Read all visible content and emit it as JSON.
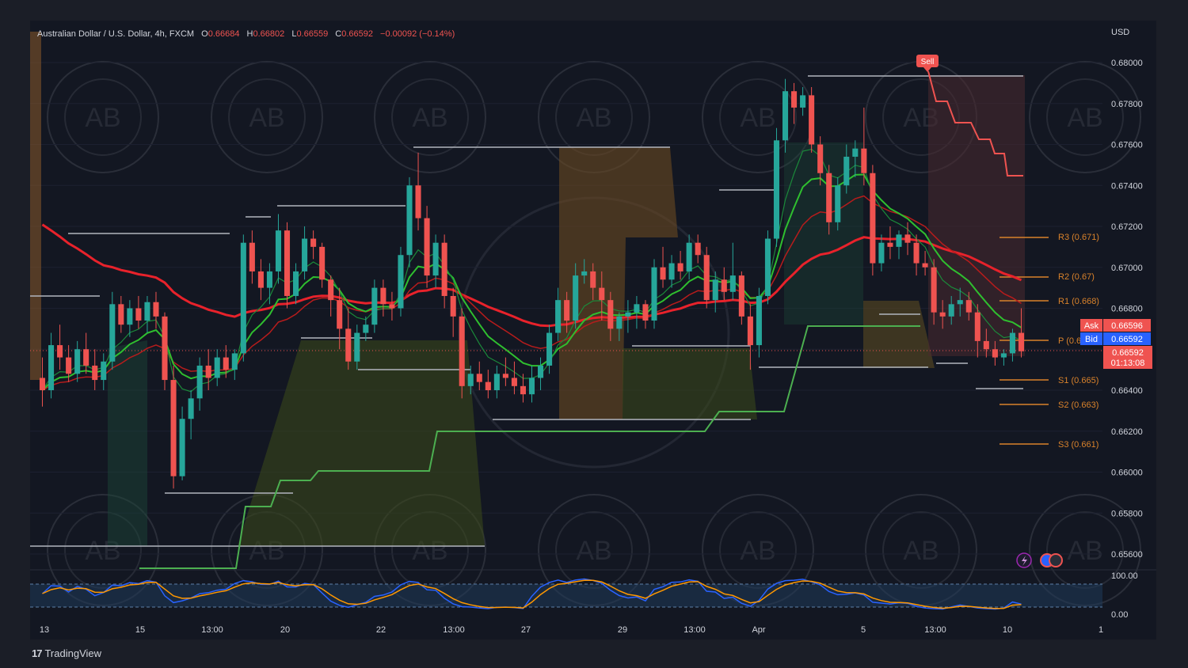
{
  "header": {
    "symbol": "Australian Dollar / U.S. Dollar, 4h, FXCM",
    "open_label": "O",
    "open": "0.66684",
    "high_label": "H",
    "high": "0.66802",
    "low_label": "L",
    "low": "0.66559",
    "close_label": "C",
    "close": "0.66592",
    "change": "−0.00092 (−0.14%)"
  },
  "price_axis": {
    "currency": "USD",
    "ticks": [
      "0.68000",
      "0.67800",
      "0.67600",
      "0.67400",
      "0.67200",
      "0.67000",
      "0.66800",
      "0.66600",
      "0.66400",
      "0.66200",
      "0.66000",
      "0.65800",
      "0.65600"
    ]
  },
  "time_axis": {
    "labels": [
      "13",
      "15",
      "13:00",
      "20",
      "22",
      "13:00",
      "27",
      "29",
      "13:00",
      "Apr",
      "5",
      "13:00",
      "10",
      "1"
    ]
  },
  "pivots": {
    "r3": "R3 (0.671)",
    "r2": "R2 (0.67)",
    "r1": "R1 (0.668)",
    "p": "P (0.6",
    "s1": "S1 (0.665)",
    "s2": "S2 (0.663)",
    "s3": "S3 (0.661)"
  },
  "price_tags": {
    "ask_label": "Ask",
    "ask": "0.66596",
    "bid_label": "Bid",
    "bid": "0.66592",
    "last": "0.66592",
    "countdown": "01:13:08"
  },
  "signal": {
    "label": "Sell"
  },
  "oscillator": {
    "ticks": [
      "100.00",
      "0.00"
    ]
  },
  "watermark": {
    "text": "AB"
  },
  "footer": {
    "logo": "17",
    "brand": "TradingView"
  },
  "colors": {
    "up": "#26a69a",
    "down": "#ef5350",
    "ma_red": "#e8222b",
    "ma_green": "#2fbf2f",
    "pivot": "#d9822b",
    "background": "#131722"
  },
  "chart_data": {
    "type": "candlestick",
    "symbol": "AUD/USD",
    "timeframe": "4h",
    "ylim": [
      0.655,
      0.6815
    ],
    "candles": [
      [
        0.6646,
        0.6656,
        0.6632,
        0.664
      ],
      [
        0.664,
        0.6668,
        0.6636,
        0.6662
      ],
      [
        0.6662,
        0.6672,
        0.665,
        0.6656
      ],
      [
        0.6656,
        0.6662,
        0.6644,
        0.6648
      ],
      [
        0.6648,
        0.6664,
        0.6644,
        0.666
      ],
      [
        0.666,
        0.6668,
        0.6648,
        0.6652
      ],
      [
        0.6652,
        0.666,
        0.664,
        0.6645
      ],
      [
        0.6645,
        0.6658,
        0.664,
        0.6654
      ],
      [
        0.6654,
        0.6688,
        0.665,
        0.6682
      ],
      [
        0.6682,
        0.6686,
        0.6668,
        0.6672
      ],
      [
        0.6672,
        0.6684,
        0.6666,
        0.668
      ],
      [
        0.668,
        0.6686,
        0.667,
        0.6674
      ],
      [
        0.6674,
        0.6686,
        0.6668,
        0.6683
      ],
      [
        0.6683,
        0.6688,
        0.667,
        0.6676
      ],
      [
        0.6676,
        0.6678,
        0.664,
        0.6645
      ],
      [
        0.6645,
        0.6652,
        0.6592,
        0.6598
      ],
      [
        0.6598,
        0.6632,
        0.6596,
        0.6626
      ],
      [
        0.6626,
        0.664,
        0.6616,
        0.6636
      ],
      [
        0.6636,
        0.6656,
        0.663,
        0.6652
      ],
      [
        0.6652,
        0.666,
        0.664,
        0.6646
      ],
      [
        0.6646,
        0.666,
        0.6642,
        0.6656
      ],
      [
        0.6656,
        0.6662,
        0.6646,
        0.665
      ],
      [
        0.665,
        0.666,
        0.6645,
        0.6658
      ],
      [
        0.6658,
        0.6716,
        0.6654,
        0.6712
      ],
      [
        0.6712,
        0.6718,
        0.6692,
        0.6698
      ],
      [
        0.6698,
        0.6704,
        0.6684,
        0.669
      ],
      [
        0.669,
        0.6702,
        0.6682,
        0.6698
      ],
      [
        0.6698,
        0.6726,
        0.6692,
        0.6718
      ],
      [
        0.6718,
        0.6722,
        0.668,
        0.6686
      ],
      [
        0.6686,
        0.6702,
        0.6682,
        0.6698
      ],
      [
        0.6698,
        0.672,
        0.6694,
        0.6714
      ],
      [
        0.6714,
        0.6718,
        0.6704,
        0.671
      ],
      [
        0.671,
        0.6712,
        0.669,
        0.6694
      ],
      [
        0.6694,
        0.6696,
        0.6676,
        0.6684
      ],
      [
        0.6684,
        0.669,
        0.666,
        0.667
      ],
      [
        0.667,
        0.668,
        0.665,
        0.6654
      ],
      [
        0.6654,
        0.6672,
        0.665,
        0.6668
      ],
      [
        0.6668,
        0.6676,
        0.6664,
        0.6672
      ],
      [
        0.6672,
        0.6694,
        0.6668,
        0.669
      ],
      [
        0.669,
        0.6694,
        0.6676,
        0.6682
      ],
      [
        0.6682,
        0.6688,
        0.6674,
        0.668
      ],
      [
        0.668,
        0.671,
        0.6676,
        0.6706
      ],
      [
        0.6706,
        0.6744,
        0.67,
        0.674
      ],
      [
        0.674,
        0.6756,
        0.6718,
        0.6724
      ],
      [
        0.6724,
        0.673,
        0.669,
        0.6696
      ],
      [
        0.6696,
        0.6716,
        0.669,
        0.6712
      ],
      [
        0.6712,
        0.6716,
        0.668,
        0.6686
      ],
      [
        0.6686,
        0.669,
        0.6666,
        0.6676
      ],
      [
        0.6676,
        0.668,
        0.6636,
        0.6642
      ],
      [
        0.6642,
        0.6652,
        0.6638,
        0.6648
      ],
      [
        0.6648,
        0.6654,
        0.664,
        0.6644
      ],
      [
        0.6644,
        0.665,
        0.6636,
        0.664
      ],
      [
        0.664,
        0.6652,
        0.6636,
        0.6648
      ],
      [
        0.6648,
        0.6656,
        0.6642,
        0.6646
      ],
      [
        0.6646,
        0.6654,
        0.6638,
        0.6642
      ],
      [
        0.6642,
        0.6648,
        0.6634,
        0.6638
      ],
      [
        0.6638,
        0.6652,
        0.6634,
        0.6646
      ],
      [
        0.6646,
        0.6656,
        0.664,
        0.6652
      ],
      [
        0.6652,
        0.6672,
        0.6648,
        0.6668
      ],
      [
        0.6668,
        0.669,
        0.6664,
        0.6684
      ],
      [
        0.6684,
        0.6688,
        0.6668,
        0.6674
      ],
      [
        0.6674,
        0.6702,
        0.667,
        0.6696
      ],
      [
        0.6696,
        0.6704,
        0.6692,
        0.6698
      ],
      [
        0.6698,
        0.6702,
        0.6684,
        0.669
      ],
      [
        0.669,
        0.6698,
        0.6674,
        0.6684
      ],
      [
        0.6684,
        0.6688,
        0.6664,
        0.667
      ],
      [
        0.667,
        0.6678,
        0.6664,
        0.6676
      ],
      [
        0.6676,
        0.6684,
        0.6668,
        0.6678
      ],
      [
        0.6678,
        0.6686,
        0.667,
        0.6682
      ],
      [
        0.6682,
        0.6684,
        0.667,
        0.6674
      ],
      [
        0.6674,
        0.6704,
        0.667,
        0.67
      ],
      [
        0.67,
        0.671,
        0.669,
        0.6694
      ],
      [
        0.6694,
        0.6706,
        0.669,
        0.6702
      ],
      [
        0.6702,
        0.6708,
        0.6694,
        0.6698
      ],
      [
        0.6698,
        0.6716,
        0.6694,
        0.6712
      ],
      [
        0.6712,
        0.6716,
        0.6702,
        0.6706
      ],
      [
        0.6706,
        0.671,
        0.668,
        0.6684
      ],
      [
        0.6684,
        0.6698,
        0.6678,
        0.6694
      ],
      [
        0.6694,
        0.67,
        0.6684,
        0.6688
      ],
      [
        0.6688,
        0.6712,
        0.6684,
        0.6696
      ],
      [
        0.6696,
        0.6698,
        0.6672,
        0.6676
      ],
      [
        0.6676,
        0.6682,
        0.665,
        0.6662
      ],
      [
        0.6662,
        0.669,
        0.6656,
        0.6686
      ],
      [
        0.6686,
        0.6718,
        0.6682,
        0.6714
      ],
      [
        0.6714,
        0.6768,
        0.671,
        0.6762
      ],
      [
        0.6762,
        0.6792,
        0.6756,
        0.6786
      ],
      [
        0.6786,
        0.679,
        0.677,
        0.6778
      ],
      [
        0.6778,
        0.6788,
        0.6774,
        0.6784
      ],
      [
        0.6784,
        0.6788,
        0.6756,
        0.676
      ],
      [
        0.676,
        0.6764,
        0.674,
        0.6746
      ],
      [
        0.6746,
        0.675,
        0.6716,
        0.6722
      ],
      [
        0.6722,
        0.6744,
        0.6718,
        0.674
      ],
      [
        0.674,
        0.676,
        0.6736,
        0.6754
      ],
      [
        0.6754,
        0.6762,
        0.6744,
        0.6758
      ],
      [
        0.6758,
        0.6778,
        0.674,
        0.6746
      ],
      [
        0.6746,
        0.675,
        0.6696,
        0.6702
      ],
      [
        0.6702,
        0.6716,
        0.6698,
        0.6712
      ],
      [
        0.6712,
        0.672,
        0.6704,
        0.671
      ],
      [
        0.671,
        0.6718,
        0.6704,
        0.6716
      ],
      [
        0.6716,
        0.6722,
        0.6706,
        0.6712
      ],
      [
        0.6712,
        0.6716,
        0.6696,
        0.6702
      ],
      [
        0.6702,
        0.6708,
        0.6696,
        0.67
      ],
      [
        0.67,
        0.6704,
        0.6672,
        0.6678
      ],
      [
        0.6678,
        0.6684,
        0.667,
        0.6676
      ],
      [
        0.6676,
        0.6686,
        0.6672,
        0.6682
      ],
      [
        0.6682,
        0.669,
        0.6676,
        0.6684
      ],
      [
        0.6684,
        0.6688,
        0.6674,
        0.6678
      ],
      [
        0.6678,
        0.6682,
        0.6656,
        0.6664
      ],
      [
        0.6664,
        0.667,
        0.6656,
        0.666
      ],
      [
        0.666,
        0.6664,
        0.6652,
        0.6656
      ],
      [
        0.6656,
        0.666,
        0.6652,
        0.6658
      ],
      [
        0.6658,
        0.667,
        0.6654,
        0.6668
      ],
      [
        0.6668,
        0.668,
        0.6656,
        0.6659
      ]
    ],
    "pivot_levels": {
      "R3": 0.671,
      "R2": 0.67,
      "R1": 0.668,
      "S1": 0.665,
      "S2": 0.663,
      "S3": 0.661
    },
    "last_price": 0.66592,
    "ask": 0.66596,
    "bid": 0.66592,
    "oscillator_range": [
      0,
      100
    ]
  }
}
